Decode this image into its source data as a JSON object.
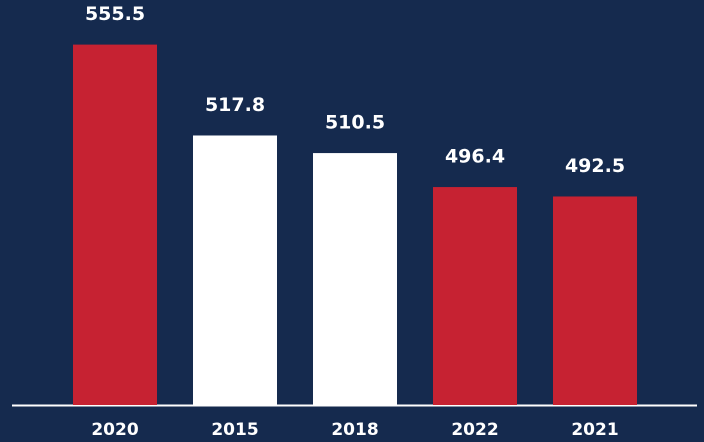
{
  "chart_data": {
    "type": "bar",
    "categories": [
      "2020",
      "2015",
      "2018",
      "2022",
      "2021"
    ],
    "values": [
      555.5,
      517.8,
      510.5,
      496.4,
      492.5
    ],
    "colors": [
      "#c62232",
      "#ffffff",
      "#ffffff",
      "#c62232",
      "#c62232"
    ],
    "ylim": [
      406,
      574
    ]
  }
}
